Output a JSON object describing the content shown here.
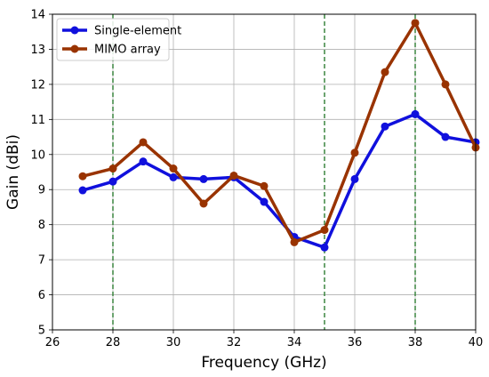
{
  "chart_data": {
    "type": "line",
    "xlabel": "Frequency (GHz)",
    "ylabel": "Gain (dBi)",
    "xlim": [
      26,
      40
    ],
    "ylim": [
      5,
      14
    ],
    "xticks": [
      26,
      28,
      30,
      32,
      34,
      36,
      38,
      40
    ],
    "yticks": [
      5,
      6,
      7,
      8,
      9,
      10,
      11,
      12,
      13,
      14
    ],
    "grid": true,
    "legend_position": "top-left",
    "x": [
      27,
      28,
      29,
      30,
      31,
      32,
      33,
      34,
      35,
      36,
      37,
      38,
      39,
      40
    ],
    "series": [
      {
        "name": "Single-element",
        "color": "#1010dd",
        "values": [
          8.98,
          9.23,
          9.8,
          9.35,
          9.3,
          9.35,
          8.65,
          7.65,
          7.35,
          9.3,
          10.8,
          11.15,
          10.5,
          10.35
        ]
      },
      {
        "name": "MIMO array",
        "color": "#993300",
        "values": [
          9.38,
          9.6,
          10.35,
          9.6,
          8.6,
          9.4,
          9.1,
          7.5,
          7.85,
          10.05,
          12.35,
          13.75,
          12.0,
          10.2
        ]
      }
    ],
    "vlines": [
      {
        "x": 28,
        "color": "#2e7d32",
        "style": "dashed"
      },
      {
        "x": 35,
        "color": "#2e7d32",
        "style": "dashed"
      },
      {
        "x": 38,
        "color": "#2e7d32",
        "style": "dashed"
      }
    ]
  }
}
